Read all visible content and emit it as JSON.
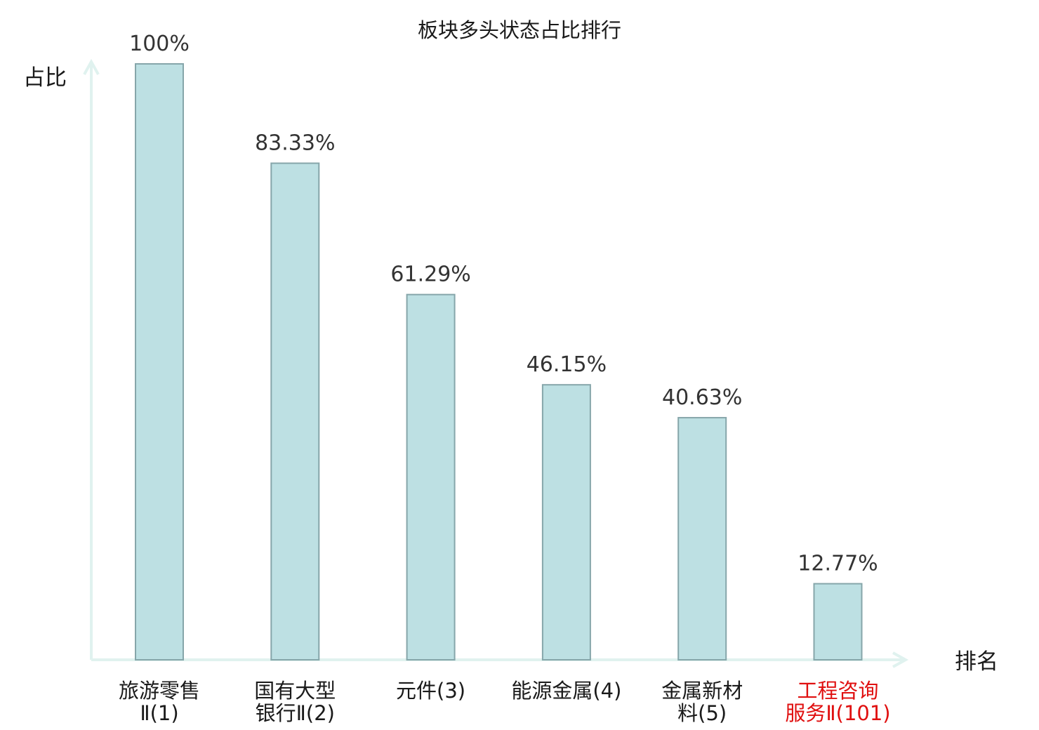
{
  "chart_data": {
    "type": "bar",
    "title": "板块多头状态占比排行",
    "ylabel": "占比",
    "xlabel": "排名",
    "ylim": [
      0,
      100
    ],
    "grid": false,
    "legend": "none",
    "categories": [
      "旅游零售Ⅱ(1)",
      "国有大型银行Ⅱ(2)",
      "元件(3)",
      "能源金属(4)",
      "金属新材料(5)",
      "工程咨询服务Ⅱ(101)"
    ],
    "category_label_lines": [
      [
        "旅游零售",
        "Ⅱ(1)"
      ],
      [
        "国有大型",
        "银行Ⅱ(2)"
      ],
      [
        "元件(3)"
      ],
      [
        "能源金属(4)"
      ],
      [
        "金属新材",
        "料(5)"
      ],
      [
        "工程咨询",
        "服务Ⅱ(101)"
      ]
    ],
    "values": [
      100,
      83.33,
      61.29,
      46.15,
      40.63,
      12.77
    ],
    "value_labels": [
      "100%",
      "83.33%",
      "61.29%",
      "46.15%",
      "40.63%",
      "12.77%"
    ],
    "highlighted_category_index": 5
  },
  "colors": {
    "bar_fill": "#bde0e3",
    "bar_stroke": "#86a6aa",
    "axis": "#e0f2ef",
    "text": "#1a1a1a",
    "value_text": "#333333",
    "highlight_text": "#e01010"
  }
}
